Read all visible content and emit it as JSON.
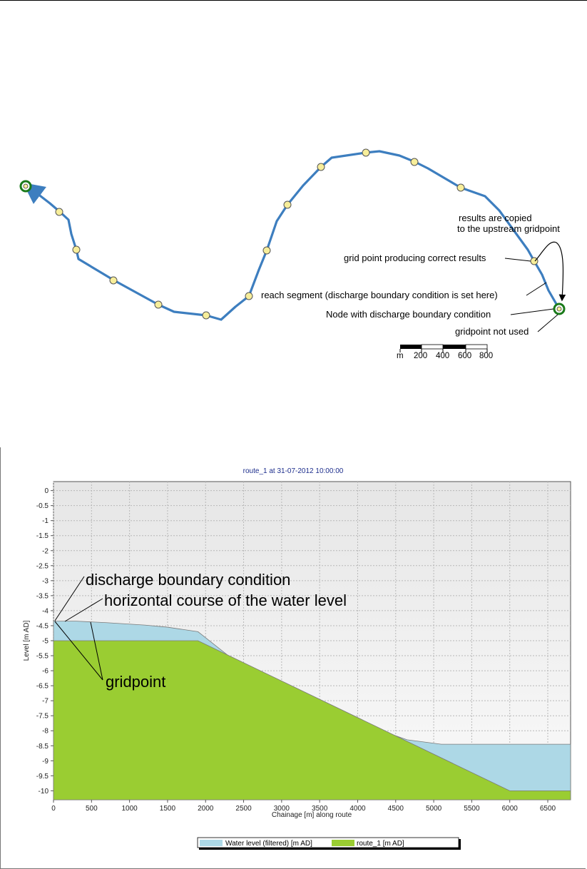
{
  "map": {
    "annotations": {
      "copied_line1": "results are copied",
      "copied_line2": "to the upstream gridpoint",
      "correct": "grid point producing correct results",
      "reach": "reach segment (discharge boundary condition is set here)",
      "node": "Node with discharge boundary condition",
      "not_used": "gridpoint not used"
    },
    "scale_bar": {
      "unit": "m",
      "ticks": [
        "200",
        "400",
        "600",
        "800"
      ]
    }
  },
  "chart_data": {
    "type": "area",
    "title": "route_1 at 31-07-2012 10:00:00",
    "xlabel": "Chainage [m] along route",
    "ylabel": "Level [m AD]",
    "xlim": [
      0,
      6800
    ],
    "ylim": [
      -10.3,
      0.3
    ],
    "xticks": [
      "0",
      "500",
      "1000",
      "1500",
      "2000",
      "2500",
      "3000",
      "3500",
      "4000",
      "4500",
      "5000",
      "5500",
      "6000",
      "6500"
    ],
    "yticks": [
      "0",
      "-0.5",
      "-1",
      "-1.5",
      "-2",
      "-2.5",
      "-3",
      "-3.5",
      "-4",
      "-4.5",
      "-5",
      "-5.5",
      "-6",
      "-6.5",
      "-7",
      "-7.5",
      "-8",
      "-8.5",
      "-9",
      "-9.5",
      "-10"
    ],
    "grid": true,
    "legend_position": "bottom",
    "series": [
      {
        "name": "Water level (filtered) [m AD]",
        "color": "#add8e6",
        "x": [
          0,
          300,
          700,
          1200,
          1500,
          1900,
          2300,
          2900,
          3600,
          4200,
          4650,
          5100,
          5500,
          6000,
          6800
        ],
        "y": [
          -4.35,
          -4.35,
          -4.4,
          -4.48,
          -4.55,
          -4.7,
          -5.5,
          -6.4,
          -7.3,
          -7.9,
          -8.3,
          -8.45,
          -8.45,
          -8.45,
          -8.45
        ]
      },
      {
        "name": "route_1 [m AD]",
        "color": "#9acd32",
        "x": [
          0,
          1900,
          6000,
          6800
        ],
        "y": [
          -5.0,
          -5.0,
          -10.0,
          -10.0
        ]
      }
    ],
    "annotations": {
      "discharge": "discharge boundary condition",
      "horizontal": "horizontal course of the water level",
      "gridpoint": "gridpoint"
    }
  }
}
